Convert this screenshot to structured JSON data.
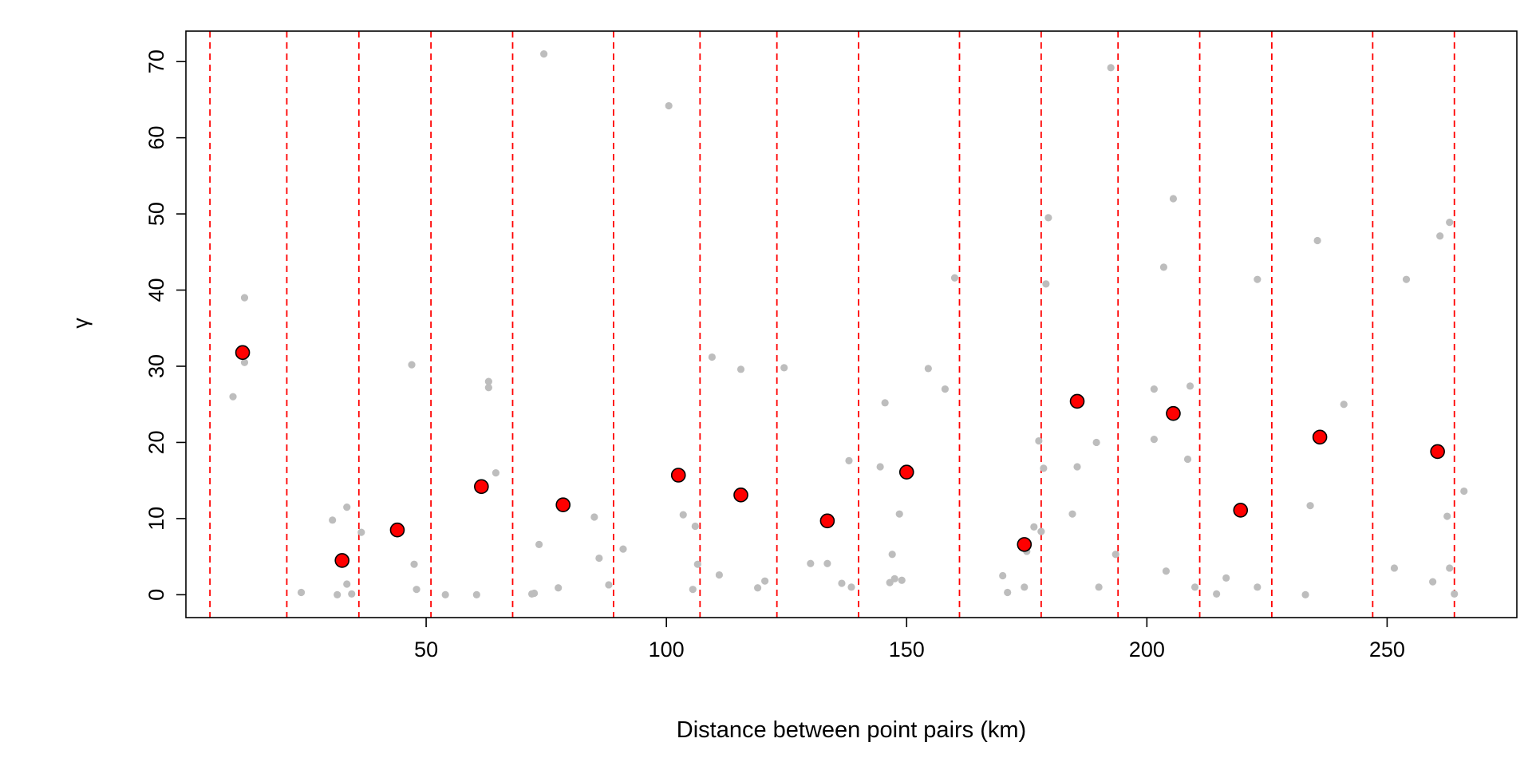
{
  "chart_data": {
    "type": "scatter",
    "xlabel": "Distance between point pairs (km)",
    "ylabel": "γ",
    "xlim": [
      0,
      277
    ],
    "ylim": [
      -3,
      74
    ],
    "x_ticks": [
      50,
      100,
      150,
      200,
      250
    ],
    "y_ticks": [
      0,
      10,
      20,
      30,
      40,
      50,
      60,
      70
    ],
    "grid": false,
    "colors": {
      "cloud_points": "#bdbdbd",
      "binned_points": "#ff0000",
      "bin_lines": "#ff0000"
    },
    "bin_breaks": [
      5,
      21,
      36,
      51,
      68,
      89,
      107,
      123,
      140,
      161,
      178,
      194,
      211,
      226,
      247,
      264
    ],
    "series": [
      {
        "role": "cloud",
        "points": [
          [
            9.8,
            26.0
          ],
          [
            12.2,
            39.0
          ],
          [
            12.2,
            30.5
          ],
          [
            24.0,
            0.3
          ],
          [
            30.5,
            9.8
          ],
          [
            31.5,
            0.0
          ],
          [
            33.5,
            11.5
          ],
          [
            33.5,
            1.4
          ],
          [
            34.5,
            0.1
          ],
          [
            36.5,
            8.2
          ],
          [
            47.0,
            30.2
          ],
          [
            47.5,
            4.0
          ],
          [
            48.0,
            0.7
          ],
          [
            54.0,
            0.0
          ],
          [
            60.5,
            0.0
          ],
          [
            63.0,
            28.0
          ],
          [
            63.0,
            27.2
          ],
          [
            64.5,
            16.0
          ],
          [
            72.0,
            0.1
          ],
          [
            72.5,
            0.2
          ],
          [
            73.5,
            6.6
          ],
          [
            74.5,
            71.0
          ],
          [
            77.5,
            0.9
          ],
          [
            85.0,
            10.2
          ],
          [
            86.0,
            4.8
          ],
          [
            88.0,
            1.3
          ],
          [
            91.0,
            6.0
          ],
          [
            100.5,
            64.2
          ],
          [
            103.5,
            10.5
          ],
          [
            105.5,
            0.7
          ],
          [
            106.0,
            9.0
          ],
          [
            106.5,
            4.0
          ],
          [
            109.5,
            31.2
          ],
          [
            111.0,
            2.6
          ],
          [
            115.5,
            29.6
          ],
          [
            119.0,
            0.9
          ],
          [
            120.5,
            1.8
          ],
          [
            124.5,
            29.8
          ],
          [
            130.0,
            4.1
          ],
          [
            133.5,
            4.1
          ],
          [
            136.5,
            1.5
          ],
          [
            138.0,
            17.6
          ],
          [
            138.5,
            1.0
          ],
          [
            144.5,
            16.8
          ],
          [
            145.5,
            25.2
          ],
          [
            146.5,
            1.6
          ],
          [
            147.0,
            5.3
          ],
          [
            147.5,
            2.1
          ],
          [
            148.5,
            10.6
          ],
          [
            149.0,
            1.9
          ],
          [
            154.5,
            29.7
          ],
          [
            158.0,
            27.0
          ],
          [
            160.0,
            41.6
          ],
          [
            170.0,
            2.5
          ],
          [
            171.0,
            0.3
          ],
          [
            174.5,
            1.0
          ],
          [
            175.0,
            5.7
          ],
          [
            176.5,
            8.9
          ],
          [
            177.5,
            20.2
          ],
          [
            178.0,
            8.3
          ],
          [
            178.5,
            16.6
          ],
          [
            179.0,
            40.8
          ],
          [
            179.5,
            49.5
          ],
          [
            184.5,
            10.6
          ],
          [
            185.5,
            16.8
          ],
          [
            189.5,
            20.0
          ],
          [
            190.0,
            1.0
          ],
          [
            192.5,
            69.2
          ],
          [
            193.5,
            5.3
          ],
          [
            201.5,
            27.0
          ],
          [
            201.5,
            20.4
          ],
          [
            203.5,
            43.0
          ],
          [
            204.0,
            3.1
          ],
          [
            205.5,
            52.0
          ],
          [
            208.5,
            17.8
          ],
          [
            209.0,
            27.4
          ],
          [
            210.0,
            1.0
          ],
          [
            214.5,
            0.1
          ],
          [
            216.5,
            2.2
          ],
          [
            223.0,
            41.4
          ],
          [
            223.0,
            1.0
          ],
          [
            233.0,
            0.0
          ],
          [
            234.0,
            11.7
          ],
          [
            235.5,
            46.5
          ],
          [
            241.0,
            25.0
          ],
          [
            251.5,
            3.5
          ],
          [
            254.0,
            41.4
          ],
          [
            259.5,
            1.7
          ],
          [
            261.0,
            47.1
          ],
          [
            262.5,
            10.3
          ],
          [
            263.0,
            48.9
          ],
          [
            263.0,
            3.5
          ],
          [
            264.0,
            0.1
          ],
          [
            266.0,
            13.6
          ]
        ]
      },
      {
        "role": "binned",
        "points": [
          [
            11.8,
            31.8
          ],
          [
            32.5,
            4.5
          ],
          [
            44.0,
            8.5
          ],
          [
            61.5,
            14.2
          ],
          [
            78.5,
            11.8
          ],
          [
            102.5,
            15.7
          ],
          [
            115.5,
            13.1
          ],
          [
            133.5,
            9.7
          ],
          [
            150.0,
            16.1
          ],
          [
            174.5,
            6.6
          ],
          [
            185.5,
            25.4
          ],
          [
            205.5,
            23.8
          ],
          [
            219.5,
            11.1
          ],
          [
            236.0,
            20.7
          ],
          [
            260.5,
            18.8
          ]
        ]
      }
    ]
  }
}
